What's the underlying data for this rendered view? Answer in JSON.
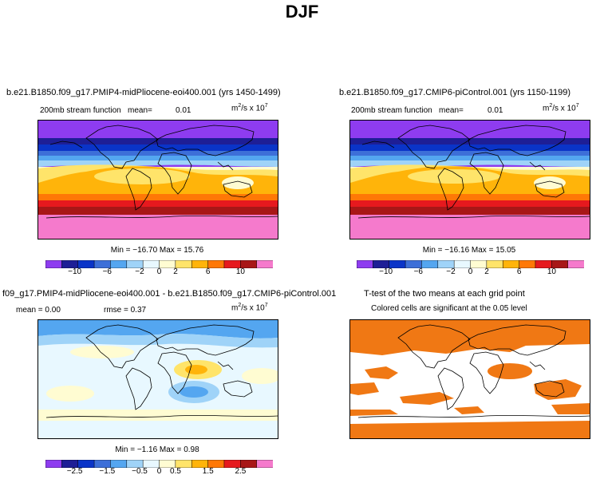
{
  "page": {
    "title": "DJF"
  },
  "chart_data": [
    {
      "type": "heatmap",
      "title": "b.e21.B1850.f09_g17.PMIP4-midPliocene-eoi400.001 (yrs 1450-1499)",
      "subtitle_left": "200mb stream function",
      "mean_label": "mean=",
      "mean_value": "0.01",
      "units_prefix": "m",
      "units_sup1": "2",
      "units_mid": "/s x 10",
      "units_sup2": "7",
      "min_max": "Min = −16.70  Max =  15.76",
      "colorbar_ticks": [
        "−10",
        "−6",
        "−2",
        "0",
        "2",
        "6",
        "10"
      ],
      "colorbar_levels": [
        -12,
        -10,
        -8,
        -6,
        -4,
        -2,
        0,
        2,
        4,
        6,
        8,
        10,
        12
      ]
    },
    {
      "type": "heatmap",
      "title": "b.e21.B1850.f09_g17.CMIP6-piControl.001 (yrs 1150-1199)",
      "subtitle_left": "200mb stream function",
      "mean_label": "mean=",
      "mean_value": "0.01",
      "units_prefix": "m",
      "units_sup1": "2",
      "units_mid": "/s x 10",
      "units_sup2": "7",
      "min_max": "Min = −16.16  Max =  15.05",
      "colorbar_ticks": [
        "−10",
        "−6",
        "−2",
        "0",
        "2",
        "6",
        "10"
      ],
      "colorbar_levels": [
        -12,
        -10,
        -8,
        -6,
        -4,
        -2,
        0,
        2,
        4,
        6,
        8,
        10,
        12
      ]
    },
    {
      "type": "heatmap",
      "title": "f09_g17.PMIP4-midPliocene-eoi400.001 - b.e21.B1850.f09_g17.CMIP6-piControl.001",
      "mean_text": "mean =   0.00",
      "rmse_text": "rmse =   0.37",
      "units_prefix": "m",
      "units_sup1": "2",
      "units_mid": "/s x 10",
      "units_sup2": "7",
      "min_max": "Min =  −1.16  Max =   0.98",
      "colorbar_ticks": [
        "−2.5",
        "−1.5",
        "−0.5",
        "0",
        "0.5",
        "1.5",
        "2.5"
      ],
      "colorbar_levels": [
        -3,
        -2.5,
        -2,
        -1.5,
        -1,
        -0.5,
        0,
        0.5,
        1,
        1.5,
        2,
        2.5,
        3
      ]
    },
    {
      "type": "heatmap",
      "title": "T-test of the two means at each grid point",
      "subtitle": "Colored cells are significant at the 0.05 level",
      "significant_color": "#f07814"
    }
  ],
  "colors": {
    "palette": [
      "#8e3cf0",
      "#1e1e96",
      "#0a34c8",
      "#3d6fd8",
      "#54a6f0",
      "#9fd3f8",
      "#e8f8ff",
      "#fffcd2",
      "#ffe46a",
      "#ffb40a",
      "#ff7806",
      "#e6191e",
      "#a81717",
      "#f57acc"
    ],
    "coast": "#000000"
  }
}
